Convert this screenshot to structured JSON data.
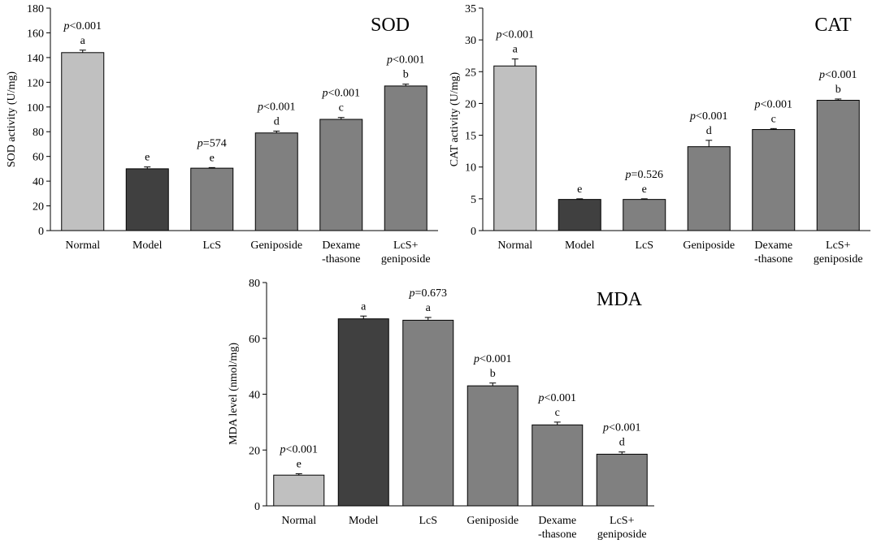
{
  "chart_data": [
    {
      "type": "bar",
      "title": "SOD",
      "ylabel": "SOD activity (U/mg)",
      "ylim": [
        0,
        180
      ],
      "yticks": [
        0,
        20,
        40,
        60,
        80,
        100,
        120,
        140,
        160,
        180
      ],
      "categories": [
        [
          "Normal"
        ],
        [
          "Model"
        ],
        [
          "LcS"
        ],
        [
          "Geniposide"
        ],
        [
          "Dexame",
          "-thasone"
        ],
        [
          "LcS+",
          "geniposide"
        ]
      ],
      "values": [
        144,
        50,
        50.5,
        79,
        90,
        117
      ],
      "errors": [
        2,
        1.5,
        0.5,
        1.5,
        1.5,
        1.5
      ],
      "letters": [
        "a",
        "e",
        "e",
        "d",
        "c",
        "b"
      ],
      "p_values": [
        "<0.001",
        "",
        "=574",
        "<0.001",
        "<0.001",
        "<0.001"
      ],
      "colors": [
        "#c0c0c0",
        "#404040",
        "#808080",
        "#808080",
        "#808080",
        "#808080"
      ]
    },
    {
      "type": "bar",
      "title": "CAT",
      "ylabel": "CAT activity (U/mg)",
      "ylim": [
        0,
        35
      ],
      "yticks": [
        0,
        5,
        10,
        15,
        20,
        25,
        30,
        35
      ],
      "categories": [
        [
          "Normal"
        ],
        [
          "Model"
        ],
        [
          "LcS"
        ],
        [
          "Geniposide"
        ],
        [
          "Dexame",
          "-thasone"
        ],
        [
          "LcS+",
          "geniposide"
        ]
      ],
      "values": [
        25.9,
        4.9,
        4.9,
        13.2,
        15.9,
        20.5
      ],
      "errors": [
        1.1,
        0.1,
        0.1,
        1.0,
        0.15,
        0.2
      ],
      "letters": [
        "a",
        "e",
        "e",
        "d",
        "c",
        "b"
      ],
      "p_values": [
        "<0.001",
        "",
        "=0.526",
        "<0.001",
        "<0.001",
        "<0.001"
      ],
      "colors": [
        "#c0c0c0",
        "#404040",
        "#808080",
        "#808080",
        "#808080",
        "#808080"
      ]
    },
    {
      "type": "bar",
      "title": "MDA",
      "ylabel": "MDA level (nmol/mg)",
      "ylim": [
        0,
        80
      ],
      "yticks": [
        0,
        20,
        40,
        60,
        80
      ],
      "categories": [
        [
          "Normal"
        ],
        [
          "Model"
        ],
        [
          "LcS"
        ],
        [
          "Geniposide"
        ],
        [
          "Dexame",
          "-thasone"
        ],
        [
          "LcS+",
          "geniposide"
        ]
      ],
      "values": [
        11,
        67,
        66.5,
        43,
        29,
        18.5
      ],
      "errors": [
        0.5,
        1.0,
        1.0,
        1.0,
        1.0,
        0.8
      ],
      "letters": [
        "e",
        "a",
        "a",
        "b",
        "c",
        "d"
      ],
      "p_values": [
        "<0.001",
        "",
        "=0.673",
        "<0.001",
        "<0.001",
        "<0.001"
      ],
      "colors": [
        "#c0c0c0",
        "#404040",
        "#808080",
        "#808080",
        "#808080",
        "#808080"
      ]
    }
  ]
}
